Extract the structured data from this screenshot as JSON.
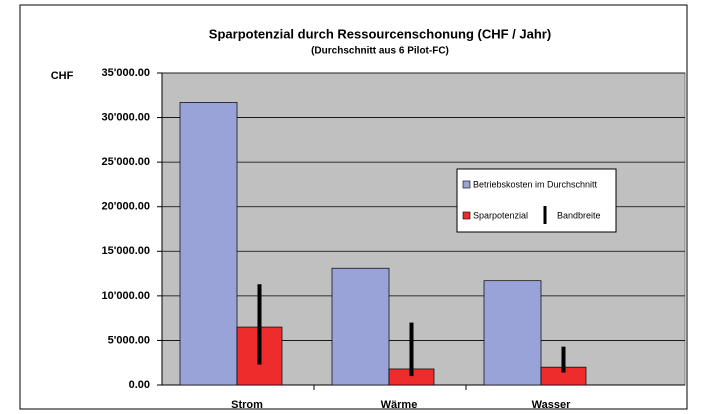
{
  "chart_data": {
    "type": "bar",
    "title": "Sparpotenzial durch Ressourcenschonung (CHF / Jahr)",
    "subtitle": "(Durchschnitt aus 6 Pilot-FC)",
    "y_label": "CHF",
    "categories": [
      "Strom",
      "Wärme",
      "Wasser"
    ],
    "series": [
      {
        "name": "Betriebskosten im Durchschnitt",
        "color": "#9aa3d8",
        "values": [
          31700,
          13100,
          11700
        ]
      },
      {
        "name": "Sparpotenzial",
        "color": "#ee2c2c",
        "values": [
          6500,
          1800,
          2000
        ]
      }
    ],
    "range": {
      "name": "Bandbreite",
      "color": "#000000",
      "low": [
        2300,
        1000,
        1400
      ],
      "high": [
        11300,
        7000,
        4300
      ]
    },
    "ylim": [
      0,
      35000
    ],
    "yticks": [
      {
        "value": 0,
        "label": "0.00"
      },
      {
        "value": 5000,
        "label": "5'000.00"
      },
      {
        "value": 10000,
        "label": "10'000.00"
      },
      {
        "value": 15000,
        "label": "15'000.00"
      },
      {
        "value": 20000,
        "label": "20'000.00"
      },
      {
        "value": 25000,
        "label": "25'000.00"
      },
      {
        "value": 30000,
        "label": "30'000.00"
      },
      {
        "value": 35000,
        "label": "35'000.00"
      }
    ],
    "grid": true,
    "background": "#c0c0c0"
  }
}
